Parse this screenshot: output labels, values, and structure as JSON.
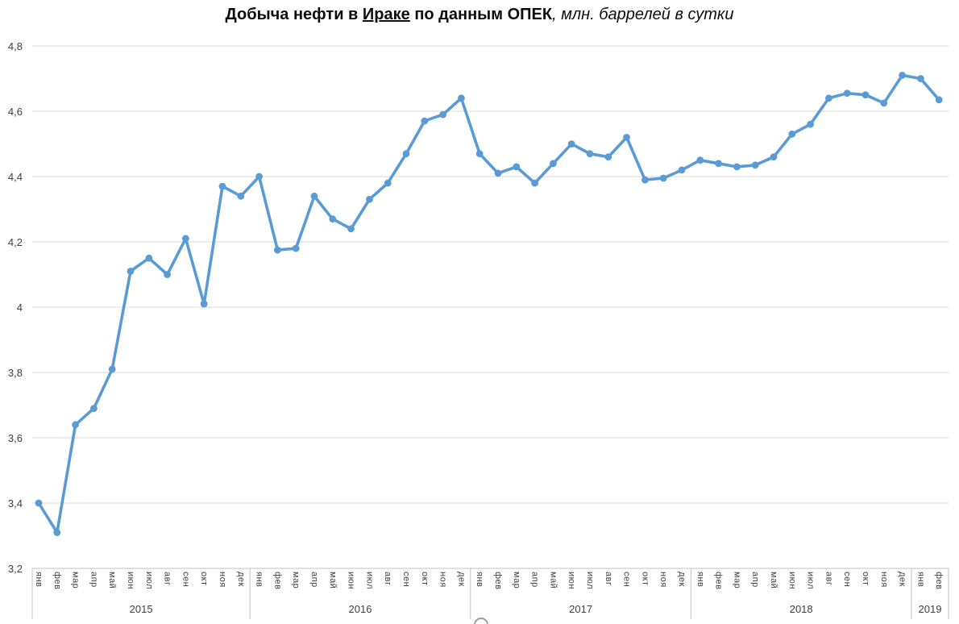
{
  "title": {
    "part1": "Добыча нефти в ",
    "part2": "Ираке",
    "part3": " по данным ОПЕК",
    "part4": ", млн. баррелей в сутки"
  },
  "chart_data": {
    "type": "line",
    "title": "Добыча нефти в Ираке по данным ОПЕК, млн. баррелей в сутки",
    "xlabel": "",
    "ylabel": "млн. баррелей в сутки",
    "ylim": [
      3.2,
      4.8
    ],
    "y_tick_step": 0.2,
    "y_tick_labels": [
      "4,8",
      "4,6",
      "4,4",
      "4,2",
      "4",
      "3,8",
      "3,6",
      "3,4",
      "3,2"
    ],
    "grid": true,
    "legend": "none",
    "line_color": "#5B9BD5",
    "marker_color": "#5B9BD5",
    "gridline_color": "#d9d9d9",
    "axis_line_color": "#c0c0c0",
    "label_color": "#404040",
    "years": [
      {
        "label": "2015",
        "months": [
          "янв",
          "фев",
          "мар",
          "апр",
          "май",
          "июн",
          "июл",
          "авг",
          "сен",
          "окт",
          "ноя",
          "дек"
        ],
        "values": [
          3.4,
          3.31,
          3.64,
          3.69,
          3.81,
          4.11,
          4.15,
          4.1,
          4.21,
          4.01,
          4.37,
          4.34
        ]
      },
      {
        "label": "2016",
        "months": [
          "янв",
          "фев",
          "мар",
          "апр",
          "май",
          "июн",
          "июл",
          "авг",
          "сен",
          "окт",
          "ноя",
          "дек"
        ],
        "values": [
          4.4,
          4.175,
          4.18,
          4.34,
          4.27,
          4.24,
          4.33,
          4.38,
          4.47,
          4.57,
          4.59,
          4.64
        ]
      },
      {
        "label": "2017",
        "months": [
          "янв",
          "фев",
          "мар",
          "апр",
          "май",
          "июн",
          "июл",
          "авг",
          "сен",
          "окт",
          "ноя",
          "дек"
        ],
        "values": [
          4.47,
          4.41,
          4.43,
          4.38,
          4.44,
          4.5,
          4.47,
          4.46,
          4.52,
          4.39,
          4.395,
          4.42
        ]
      },
      {
        "label": "2018",
        "months": [
          "янв",
          "фев",
          "мар",
          "апр",
          "май",
          "июн",
          "июл",
          "авг",
          "сен",
          "окт",
          "ноя",
          "дек"
        ],
        "values": [
          4.45,
          4.44,
          4.43,
          4.435,
          4.46,
          4.53,
          4.56,
          4.64,
          4.655,
          4.65,
          4.625,
          4.71
        ]
      },
      {
        "label": "2019",
        "months": [
          "янв",
          "фев"
        ],
        "values": [
          4.7,
          4.635
        ]
      }
    ]
  }
}
